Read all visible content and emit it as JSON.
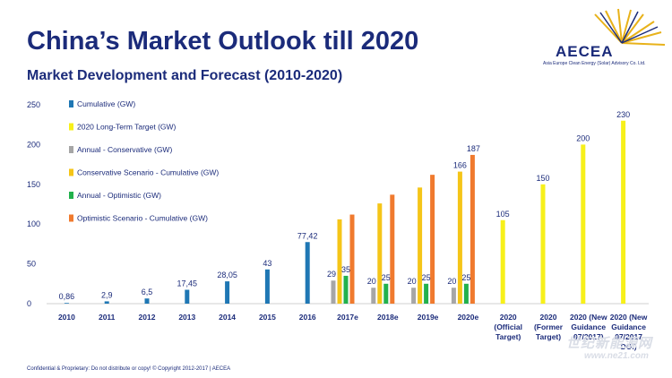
{
  "slide": {
    "title": "China’s Market Outlook till 2020",
    "subtitle": "Market Development and Forecast (2010-2020)",
    "footer": "Confidential & Proprietary: Do not distribute or copy! © Copyright 2012-2017 | AECEA"
  },
  "logo": {
    "name": "AECEA",
    "tagline": "Asia Europe Clean Energy (Solar) Advisory Co. Ltd."
  },
  "watermark": {
    "text": "世纪新能源网",
    "url": "www.ne21.com"
  },
  "colors": {
    "cumulative": "#1f77b4",
    "target": "#f7f01a",
    "conservative_annual": "#a6a6a6",
    "conservative_cumulative": "#f5c518",
    "optimistic_annual": "#22b14c",
    "optimistic_cumulative": "#f07a2e",
    "title": "#1b2b7a"
  },
  "chart_data": {
    "type": "bar",
    "title": "Market Development and Forecast (2010-2020)",
    "xlabel": "",
    "ylabel": "",
    "ylim": [
      0,
      250
    ],
    "yticks": [
      0,
      50,
      100,
      150,
      200,
      250
    ],
    "grid": false,
    "legend_position": "top-left",
    "categories": [
      "2010",
      "2011",
      "2012",
      "2013",
      "2014",
      "2015",
      "2016",
      "2017e",
      "2018e",
      "2019e",
      "2020e",
      "2020 (Official Target)",
      "2020 (Former Target)",
      "2020 (New Guidance 07/2017)",
      "2020 (New Guidance 07/2017 DGI)"
    ],
    "category_lines": [
      [
        "2010"
      ],
      [
        "2011"
      ],
      [
        "2012"
      ],
      [
        "2013"
      ],
      [
        "2014"
      ],
      [
        "2015"
      ],
      [
        "2016"
      ],
      [
        "2017e"
      ],
      [
        "2018e"
      ],
      [
        "2019e"
      ],
      [
        "2020e"
      ],
      [
        "2020",
        "(Official",
        "Target)"
      ],
      [
        "2020",
        "(Former",
        "Target)"
      ],
      [
        "2020 (New",
        "Guidance",
        "07/2017)"
      ],
      [
        "2020 (New",
        "Guidance",
        "07/2017",
        "DGI)"
      ]
    ],
    "series": [
      {
        "name": "Cumulative (GW)",
        "key": "cumulative",
        "labels": [
          "0,86",
          "2,9",
          "6,5",
          "17,45",
          "28,05",
          "43",
          "77,42",
          null,
          null,
          null,
          null,
          null,
          null,
          null,
          null
        ],
        "values": [
          0.86,
          2.9,
          6.5,
          17.45,
          28.05,
          43,
          77.42,
          null,
          null,
          null,
          null,
          null,
          null,
          null,
          null
        ]
      },
      {
        "name": "2020 Long-Term Target (GW)",
        "key": "target",
        "labels": [
          null,
          null,
          null,
          null,
          null,
          null,
          null,
          null,
          null,
          null,
          null,
          "105",
          "150",
          "200",
          "230"
        ],
        "values": [
          null,
          null,
          null,
          null,
          null,
          null,
          null,
          null,
          null,
          null,
          null,
          105,
          150,
          200,
          230
        ]
      },
      {
        "name": "Annual - Conservative (GW)",
        "key": "conservative_annual",
        "labels": [
          null,
          null,
          null,
          null,
          null,
          null,
          null,
          "29",
          "20",
          "20",
          "20",
          null,
          null,
          null,
          null
        ],
        "values": [
          null,
          null,
          null,
          null,
          null,
          null,
          null,
          29,
          20,
          20,
          20,
          null,
          null,
          null,
          null
        ]
      },
      {
        "name": "Conservative Scenario - Cumulative (GW)",
        "key": "conservative_cumulative",
        "labels": [
          null,
          null,
          null,
          null,
          null,
          null,
          null,
          null,
          null,
          null,
          "166",
          null,
          null,
          null,
          null
        ],
        "values": [
          null,
          null,
          null,
          null,
          null,
          null,
          null,
          106,
          126,
          146,
          166,
          null,
          null,
          null,
          null
        ]
      },
      {
        "name": "Annual - Optimistic (GW)",
        "key": "optimistic_annual",
        "labels": [
          null,
          null,
          null,
          null,
          null,
          null,
          null,
          "35",
          "25",
          "25",
          "25",
          null,
          null,
          null,
          null
        ],
        "values": [
          null,
          null,
          null,
          null,
          null,
          null,
          null,
          35,
          25,
          25,
          25,
          null,
          null,
          null,
          null
        ]
      },
      {
        "name": "Optimistic Scenario - Cumulative (GW)",
        "key": "optimistic_cumulative",
        "labels": [
          null,
          null,
          null,
          null,
          null,
          null,
          null,
          null,
          null,
          null,
          "187",
          null,
          null,
          null,
          null
        ],
        "values": [
          null,
          null,
          null,
          null,
          null,
          null,
          null,
          112,
          137,
          162,
          187,
          null,
          null,
          null,
          null
        ]
      }
    ]
  }
}
